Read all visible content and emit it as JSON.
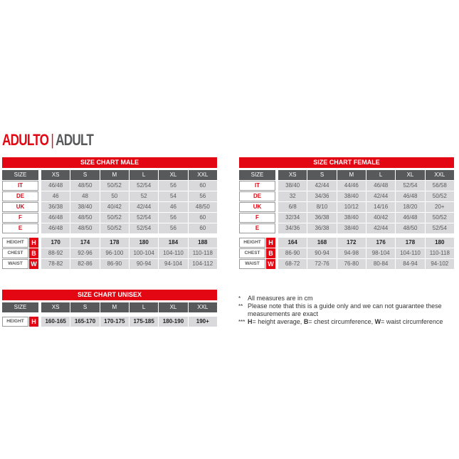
{
  "heading": {
    "primary": "ADULTO",
    "separator": "|",
    "secondary": "ADULT"
  },
  "sizes": [
    "XS",
    "S",
    "M",
    "L",
    "XL",
    "XXL"
  ],
  "size_label": "SIZE",
  "male": {
    "title": "SIZE CHART MALE",
    "countries": [
      {
        "label": "IT",
        "values": [
          "46/48",
          "48/50",
          "50/52",
          "52/54",
          "56",
          "60"
        ]
      },
      {
        "label": "DE",
        "values": [
          "46",
          "48",
          "50",
          "52",
          "54",
          "56"
        ]
      },
      {
        "label": "UK",
        "values": [
          "36/38",
          "38/40",
          "40/42",
          "42/44",
          "46",
          "48/50"
        ]
      },
      {
        "label": "F",
        "values": [
          "46/48",
          "48/50",
          "50/52",
          "52/54",
          "56",
          "60"
        ]
      },
      {
        "label": "E",
        "values": [
          "46/48",
          "48/50",
          "50/52",
          "52/54",
          "56",
          "60"
        ]
      }
    ],
    "measures": [
      {
        "label": "HEIGHT",
        "key": "H",
        "values": [
          "170",
          "174",
          "178",
          "180",
          "184",
          "188"
        ]
      },
      {
        "label": "CHEST",
        "key": "B",
        "values": [
          "88-92",
          "92-96",
          "96-100",
          "100-104",
          "104-110",
          "110-118"
        ]
      },
      {
        "label": "WAIST",
        "key": "W",
        "values": [
          "78-82",
          "82-86",
          "86-90",
          "90-94",
          "94-104",
          "104-112"
        ]
      }
    ]
  },
  "female": {
    "title": "SIZE CHART FEMALE",
    "countries": [
      {
        "label": "IT",
        "values": [
          "38/40",
          "42/44",
          "44/46",
          "46/48",
          "52/54",
          "56/58"
        ]
      },
      {
        "label": "DE",
        "values": [
          "32",
          "34/36",
          "38/40",
          "42/44",
          "46/48",
          "50/52"
        ]
      },
      {
        "label": "UK",
        "values": [
          "6/8",
          "8/10",
          "10/12",
          "14/16",
          "18/20",
          "20+"
        ]
      },
      {
        "label": "F",
        "values": [
          "32/34",
          "36/38",
          "38/40",
          "40/42",
          "46/48",
          "50/52"
        ]
      },
      {
        "label": "E",
        "values": [
          "34/36",
          "36/38",
          "38/40",
          "42/44",
          "48/50",
          "52/54"
        ]
      }
    ],
    "measures": [
      {
        "label": "HEIGHT",
        "key": "H",
        "values": [
          "164",
          "168",
          "172",
          "176",
          "178",
          "180"
        ]
      },
      {
        "label": "CHEST",
        "key": "B",
        "values": [
          "86-90",
          "90-94",
          "94-98",
          "98-104",
          "104-110",
          "110-118"
        ]
      },
      {
        "label": "WAIST",
        "key": "W",
        "values": [
          "68-72",
          "72-76",
          "76-80",
          "80-84",
          "84-94",
          "94-102"
        ]
      }
    ]
  },
  "unisex": {
    "title": "SIZE CHART UNISEX",
    "countries": [],
    "measures": [
      {
        "label": "HEIGHT",
        "key": "H",
        "values": [
          "160-165",
          "165-170",
          "170-175",
          "175-185",
          "180-190",
          "190+"
        ]
      }
    ]
  },
  "notes": [
    {
      "mark": "*",
      "text": "All measures are in cm"
    },
    {
      "mark": "**",
      "text": "Please note that this is a guide only and we can not guarantee these measurements are exact"
    },
    {
      "mark": "***",
      "parts": [
        {
          "b": "H",
          "t": "= height average, "
        },
        {
          "b": "B",
          "t": "= chest circumference, "
        },
        {
          "b": "W",
          "t": "= waist circumference"
        }
      ]
    }
  ]
}
